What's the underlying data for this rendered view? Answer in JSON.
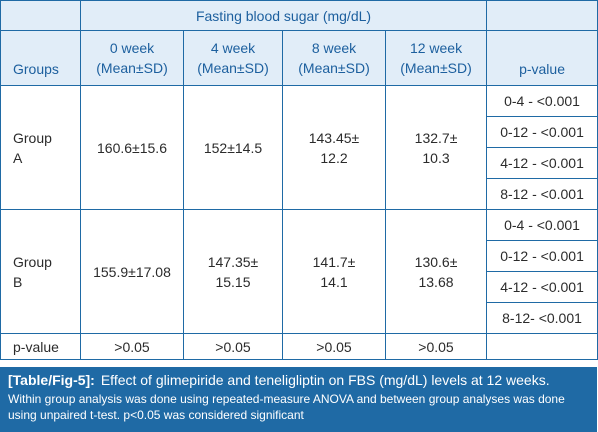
{
  "table": {
    "super_header": "Fasting blood sugar (mg/dL)",
    "groups_label": "Groups",
    "pvalue_label": "p-value",
    "columns": [
      {
        "line1": "0 week",
        "line2": "(Mean±SD)"
      },
      {
        "line1": "4 week",
        "line2": "(Mean±SD)"
      },
      {
        "line1": "8 week",
        "line2": "(Mean±SD)"
      },
      {
        "line1": "12 week",
        "line2": "(Mean±SD)"
      }
    ],
    "rows": [
      {
        "group_line1": "Group",
        "group_line2": "A",
        "values": [
          {
            "line1": "160.6±15.6",
            "line2": ""
          },
          {
            "line1": "152±14.5",
            "line2": ""
          },
          {
            "line1": "143.45±",
            "line2": "12.2"
          },
          {
            "line1": "132.7±",
            "line2": "10.3"
          }
        ],
        "pvalues": [
          "0-4 - <0.001",
          "0-12 - <0.001",
          "4-12 - <0.001",
          "8-12 - <0.001"
        ]
      },
      {
        "group_line1": "Group",
        "group_line2": "B",
        "values": [
          {
            "line1": "155.9±17.08",
            "line2": ""
          },
          {
            "line1": "147.35±",
            "line2": "15.15"
          },
          {
            "line1": "141.7±",
            "line2": "14.1"
          },
          {
            "line1": "130.6±",
            "line2": "13.68"
          }
        ],
        "pvalues": [
          "0-4 - <0.001",
          "0-12 - <0.001",
          "4-12 - <0.001",
          "8-12- <0.001"
        ]
      }
    ],
    "footer": {
      "label": "p-value",
      "values": [
        ">0.05",
        ">0.05",
        ">0.05",
        ">0.05"
      ]
    }
  },
  "caption": {
    "tag": "[Table/Fig-5]:",
    "title": "Effect of glimepiride and teneligliptin on FBS (mg/dL) levels at 12 weeks.",
    "note": "Within group analysis was done using repeated-measure ANOVA and between group analyses was done using unpaired t-test. p<0.05 was considered significant"
  },
  "colors": {
    "border": "#1f6aa5",
    "header_bg": "#e1edf8",
    "header_text": "#1c5f9e",
    "caption_bg": "#1f6aa5",
    "caption_text": "#ffffff"
  }
}
